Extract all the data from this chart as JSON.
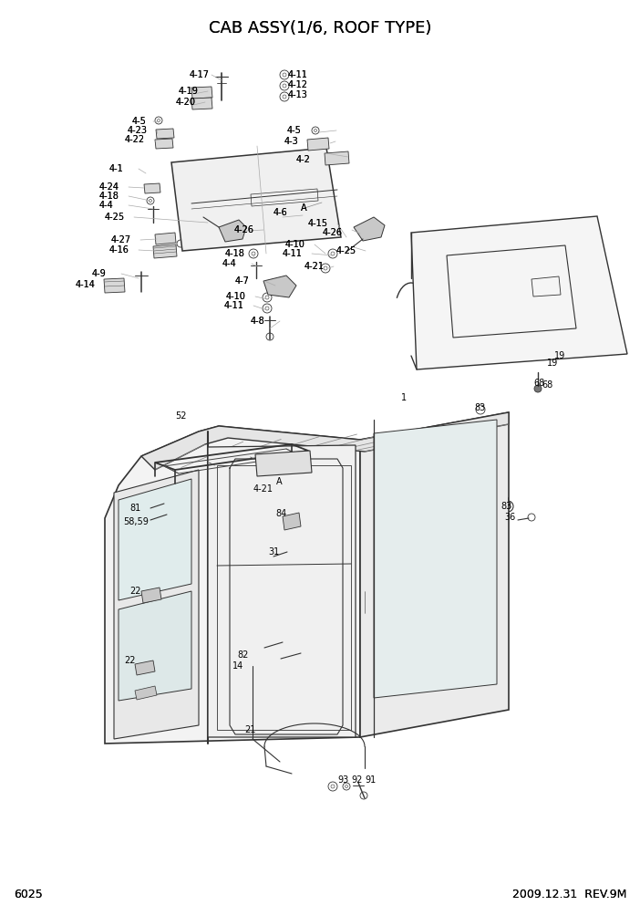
{
  "title": "CAB ASSY(1/6, ROOF TYPE)",
  "page_num": "6025",
  "date_rev": "2009.12.31  REV.9M",
  "bg_color": "#ffffff",
  "text_color": "#000000",
  "line_color": "#333333",
  "title_fontsize": 13,
  "label_fontsize": 7.0,
  "footer_fontsize": 9,
  "upper_labels": [
    [
      208,
      82,
      "4-17"
    ],
    [
      196,
      100,
      "4-19"
    ],
    [
      193,
      112,
      "4-20"
    ],
    [
      145,
      133,
      "4-5"
    ],
    [
      140,
      143,
      "4-23"
    ],
    [
      137,
      153,
      "4-22"
    ],
    [
      120,
      185,
      "4-1"
    ],
    [
      109,
      205,
      "4-24"
    ],
    [
      109,
      215,
      "4-18"
    ],
    [
      109,
      225,
      "4-4"
    ],
    [
      115,
      238,
      "4-25"
    ],
    [
      122,
      263,
      "4-27"
    ],
    [
      120,
      274,
      "4-16"
    ],
    [
      101,
      300,
      "4-9"
    ],
    [
      83,
      312,
      "4-14"
    ],
    [
      257,
      252,
      "4-26"
    ],
    [
      247,
      278,
      "4-18"
    ],
    [
      244,
      289,
      "4-4"
    ],
    [
      258,
      308,
      "4-7"
    ],
    [
      248,
      325,
      "4-10"
    ],
    [
      246,
      335,
      "4-11"
    ],
    [
      275,
      352,
      "4-8"
    ],
    [
      313,
      268,
      "4-10"
    ],
    [
      310,
      278,
      "4-11"
    ],
    [
      334,
      292,
      "4-21"
    ],
    [
      369,
      275,
      "4-25"
    ],
    [
      354,
      255,
      "4-26"
    ],
    [
      338,
      245,
      "4-15"
    ],
    [
      300,
      233,
      "4-6"
    ],
    [
      330,
      228,
      "A"
    ],
    [
      316,
      82,
      "4-11"
    ],
    [
      316,
      93,
      "4-12"
    ],
    [
      316,
      104,
      "4-13"
    ],
    [
      315,
      143,
      "4-5"
    ],
    [
      312,
      155,
      "4-3"
    ],
    [
      325,
      175,
      "4-2"
    ]
  ],
  "lower_labels": [
    [
      192,
      456,
      "52"
    ],
    [
      440,
      436,
      "1"
    ],
    [
      520,
      447,
      "83"
    ],
    [
      549,
      555,
      "83"
    ],
    [
      553,
      567,
      "36"
    ],
    [
      142,
      557,
      "81"
    ],
    [
      135,
      572,
      "58,59"
    ],
    [
      142,
      648,
      "22"
    ],
    [
      136,
      724,
      "22"
    ],
    [
      255,
      730,
      "14"
    ],
    [
      260,
      718,
      "82"
    ],
    [
      294,
      605,
      "31"
    ],
    [
      302,
      563,
      "84"
    ],
    [
      278,
      536,
      "4-21"
    ],
    [
      303,
      528,
      "A"
    ],
    [
      268,
      800,
      "21"
    ],
    [
      370,
      855,
      "93"
    ],
    [
      385,
      855,
      "92"
    ],
    [
      400,
      855,
      "91"
    ],
    [
      600,
      398,
      "19"
    ],
    [
      585,
      420,
      "68"
    ]
  ]
}
